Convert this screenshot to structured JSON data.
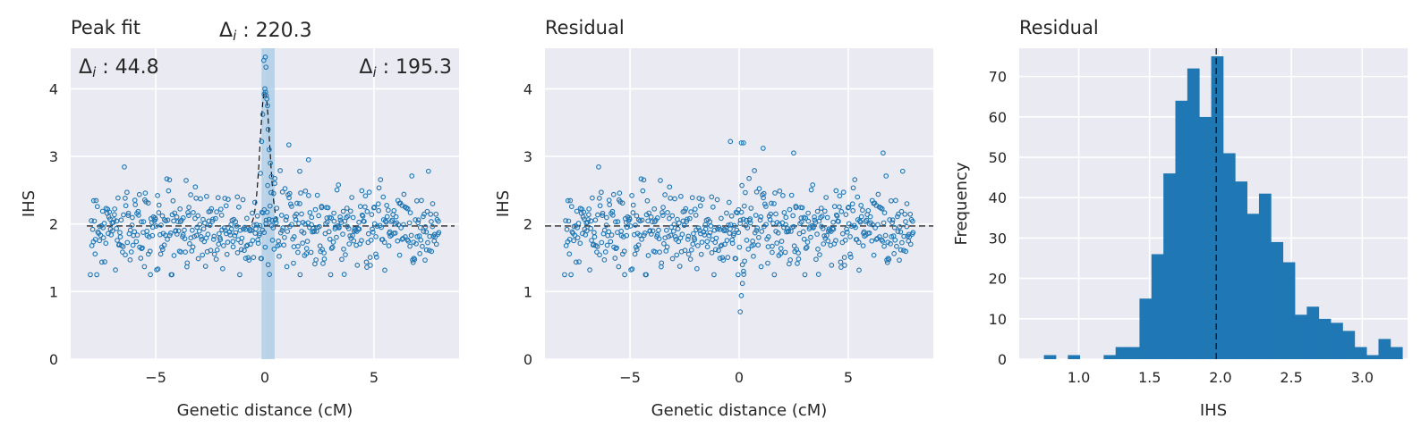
{
  "chart_data": [
    {
      "type": "scatter",
      "title": "Peak fit",
      "xlabel": "Genetic distance (cM)",
      "ylabel": "IHS",
      "xlim": [
        -8.9,
        8.9
      ],
      "ylim": [
        0,
        4.6
      ],
      "xticks": [
        -5,
        0,
        5
      ],
      "xtick_labels": [
        "−5",
        "0",
        "5"
      ],
      "yticks": [
        0,
        1,
        2,
        3,
        4
      ],
      "ytick_labels": [
        "0",
        "1",
        "2",
        "3",
        "4"
      ],
      "baseline": 1.97,
      "shaded_band": [
        -0.15,
        0.45
      ],
      "annotations": {
        "left": {
          "symbol": "Δ",
          "sub": "i",
          "text": " : 44.8"
        },
        "top": {
          "symbol": "Δ",
          "sub": "i",
          "text": " : 220.3"
        },
        "right": {
          "symbol": "Δ",
          "sub": "i",
          "text": " : 195.3"
        }
      },
      "peak_points": [
        {
          "x": 0.02,
          "y": 4.47
        },
        {
          "x": 0.05,
          "y": 4.32
        },
        {
          "x": -0.05,
          "y": 4.42
        },
        {
          "x": 0.0,
          "y": 4.0
        },
        {
          "x": 0.03,
          "y": 3.95
        },
        {
          "x": 0.06,
          "y": 3.9
        },
        {
          "x": -0.03,
          "y": 3.92
        },
        {
          "x": 0.09,
          "y": 3.85
        },
        {
          "x": 0.12,
          "y": 3.75
        },
        {
          "x": -0.1,
          "y": 3.62
        },
        {
          "x": -0.15,
          "y": 3.22
        },
        {
          "x": 0.2,
          "y": 3.1
        },
        {
          "x": 0.25,
          "y": 2.9
        },
        {
          "x": 0.15,
          "y": 3.4
        },
        {
          "x": 0.3,
          "y": 2.7
        },
        {
          "x": -0.2,
          "y": 2.75
        },
        {
          "x": 0.45,
          "y": 2.6
        },
        {
          "x": 0.4,
          "y": 2.45
        },
        {
          "x": 1.1,
          "y": 3.17
        },
        {
          "x": 1.6,
          "y": 2.78
        },
        {
          "x": 2.0,
          "y": 2.95
        }
      ],
      "fit_curve": {
        "center": 0.0,
        "amplitude": 2.0,
        "width": 0.22,
        "baseline": 1.97
      }
    },
    {
      "type": "scatter",
      "title": "Residual",
      "xlabel": "Genetic distance (cM)",
      "ylabel": "IHS",
      "xlim": [
        -8.9,
        8.9
      ],
      "ylim": [
        0,
        4.6
      ],
      "xticks": [
        -5,
        0,
        5
      ],
      "xtick_labels": [
        "−5",
        "0",
        "5"
      ],
      "yticks": [
        0,
        1,
        2,
        3,
        4
      ],
      "ytick_labels": [
        "0",
        "1",
        "2",
        "3",
        "4"
      ],
      "baseline": 1.97,
      "dip_points": [
        {
          "x": 0.05,
          "y": 0.7
        },
        {
          "x": 0.1,
          "y": 0.94
        },
        {
          "x": 0.15,
          "y": 1.12
        },
        {
          "x": -0.05,
          "y": 1.25
        },
        {
          "x": 0.2,
          "y": 1.3
        },
        {
          "x": 0.25,
          "y": 1.45
        },
        {
          "x": 0.1,
          "y": 3.2
        },
        {
          "x": 0.2,
          "y": 3.2
        },
        {
          "x": -0.4,
          "y": 3.22
        },
        {
          "x": 1.1,
          "y": 3.12
        },
        {
          "x": 2.5,
          "y": 3.05
        },
        {
          "x": 6.6,
          "y": 3.05
        }
      ]
    },
    {
      "type": "bar",
      "title": "Residual",
      "xlabel": "IHS",
      "ylabel": "Frequency",
      "xlim": [
        0.58,
        3.32
      ],
      "ylim": [
        0,
        77
      ],
      "xticks": [
        1.0,
        1.5,
        2.0,
        2.5,
        3.0
      ],
      "xtick_labels": [
        "1.0",
        "1.5",
        "2.0",
        "2.5",
        "3.0"
      ],
      "yticks": [
        0,
        10,
        20,
        30,
        40,
        50,
        60,
        70
      ],
      "ytick_labels": [
        "0",
        "10",
        "20",
        "30",
        "40",
        "50",
        "60",
        "70"
      ],
      "vline": 1.97,
      "bin_start": 0.67,
      "bin_width": 0.0843,
      "values": [
        0,
        1,
        0,
        1,
        0,
        0,
        1,
        3,
        3,
        15,
        26,
        46,
        64,
        72,
        60,
        75,
        51,
        44,
        36,
        41,
        29,
        24,
        11,
        13,
        10,
        9,
        7,
        3,
        1,
        5,
        3
      ]
    }
  ],
  "colors": {
    "background": "#eaeaf2",
    "grid": "#ffffff",
    "series": "#1f77b4",
    "band": "#a9c9e4",
    "text": "#262626"
  }
}
